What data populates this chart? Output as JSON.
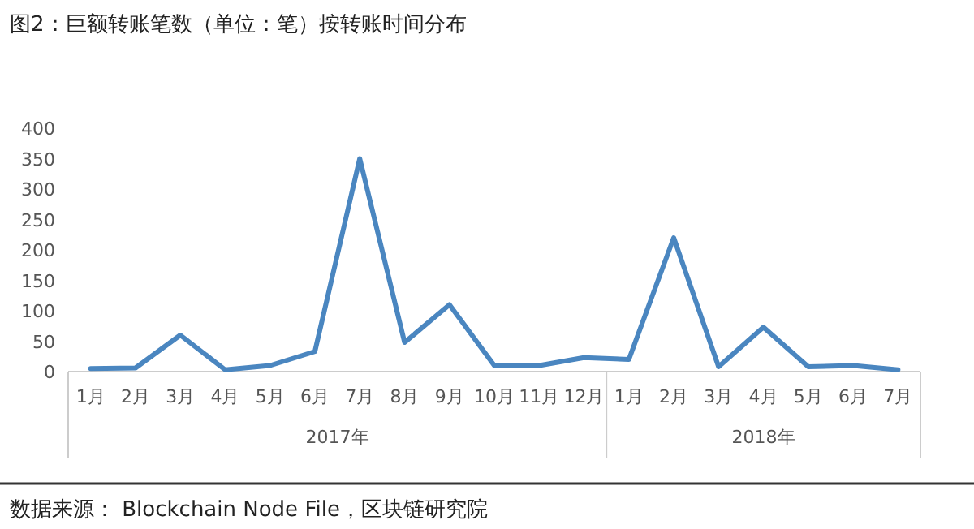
{
  "chart_data": {
    "type": "line",
    "title": "图2：巨额转账笔数（单位：笔）按转账时间分布",
    "categories": [
      "1月",
      "2月",
      "3月",
      "4月",
      "5月",
      "6月",
      "7月",
      "8月",
      "9月",
      "10月",
      "11月",
      "12月",
      "1月",
      "2月",
      "3月",
      "4月",
      "5月",
      "6月",
      "7月"
    ],
    "series": [
      {
        "color": "#4a86c0",
        "values": [
          5,
          6,
          60,
          3,
          10,
          33,
          350,
          48,
          110,
          10,
          10,
          23,
          20,
          220,
          8,
          73,
          8,
          10,
          3
        ]
      }
    ],
    "ylim": [
      0,
      400
    ],
    "yticks": [
      0,
      50,
      100,
      150,
      200,
      250,
      300,
      350,
      400
    ],
    "grid": false,
    "legend": false,
    "marker": "none",
    "line_style": "solid",
    "annotations": [
      "2017年",
      "2018年",
      "数据来源：  Blockchain Node File，区块链研究院"
    ]
  }
}
